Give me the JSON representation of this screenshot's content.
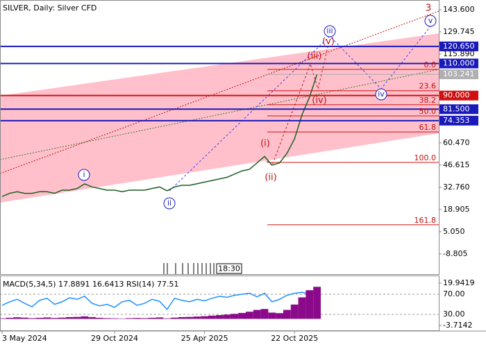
{
  "chart_data": [
    {
      "type": "line",
      "title": "SILVER, Daily:  Silver CFD",
      "categories": [
        "3 May 2024",
        null,
        null,
        null,
        null,
        null,
        null,
        null,
        null,
        null,
        null,
        null,
        null,
        null,
        null,
        "29 Oct 2024",
        null,
        null,
        null,
        null,
        null,
        null,
        null,
        null,
        null,
        null,
        null,
        "25 Apr 2025",
        null,
        null,
        null,
        null,
        null,
        null,
        null,
        null,
        null,
        null,
        null,
        "22 Oct 2025",
        null,
        null,
        null
      ],
      "series": [
        {
          "color": "#1b5e20",
          "values": [
            27,
            29,
            30,
            29,
            29,
            30,
            30,
            29,
            31,
            31,
            32,
            34.9,
            33,
            32,
            31,
            31,
            30,
            31,
            31,
            31,
            32,
            33,
            30.6,
            33,
            34,
            34,
            35,
            36,
            37,
            38,
            39,
            41,
            43,
            44,
            48,
            52,
            46.6,
            48,
            54,
            63,
            78,
            89,
            103.241
          ]
        }
      ],
      "ylim": [
        -21.4,
        148.3
      ],
      "yticks": [
        {
          "value": 143.6,
          "label": "143.600"
        },
        {
          "value": 129.745,
          "label": "129.745"
        },
        {
          "value": 115.89,
          "label": "115.890"
        },
        {
          "value": 60.47,
          "label": "60.470"
        },
        {
          "value": 46.615,
          "label": "46.615"
        },
        {
          "value": 32.76,
          "label": "32.760"
        },
        {
          "value": 18.905,
          "label": "18.905"
        },
        {
          "value": 5.05,
          "label": "5.050"
        },
        {
          "value": -8.805,
          "label": "-8.805"
        }
      ],
      "current_price": {
        "value": 103.241,
        "label": "103.241"
      },
      "levels": [
        {
          "value": 120.65,
          "label": "120.650",
          "color": "#1a1ab8"
        },
        {
          "value": 110,
          "label": "110.000",
          "color": "#1a1ab8"
        },
        {
          "value": 90,
          "label": "90.000",
          "color": "#d01010"
        },
        {
          "value": 81.5,
          "label": "81.500",
          "color": "#1a1ab8"
        },
        {
          "value": 74.353,
          "label": "74.353",
          "color": "#1a1ab8"
        }
      ],
      "fibonacci": {
        "color": "#d01010",
        "levels": [
          {
            "value": 106.3,
            "label": "0.0"
          },
          {
            "value": 93,
            "label": "23.6"
          },
          {
            "value": 84.3,
            "label": "38.2"
          },
          {
            "value": 77.3,
            "label": "50.0"
          },
          {
            "value": 67.3,
            "label": "61.8"
          },
          {
            "value": 48.3,
            "label": "100.0"
          },
          {
            "value": 9.4,
            "label": "161.8"
          }
        ]
      },
      "waves": [
        {
          "label": "i",
          "color": "#1a1ab8",
          "circle": true
        },
        {
          "label": "ii",
          "color": "#1a1ab8",
          "circle": true
        },
        {
          "label": "(i)",
          "color": "#c01010",
          "circle": false
        },
        {
          "label": "(ii)",
          "color": "#c01010",
          "circle": false
        },
        {
          "label": "(iii)",
          "color": "#c01010",
          "circle": false
        },
        {
          "label": "(iv)",
          "color": "#c01010",
          "circle": false
        },
        {
          "label": "(v)",
          "color": "#c01010",
          "circle": false
        },
        {
          "label": "iii",
          "color": "#1a1ab8",
          "circle": true
        },
        {
          "label": "iv",
          "color": "#1a1ab8",
          "circle": true
        },
        {
          "label": "v",
          "color": "#1a1ab8",
          "circle": true
        },
        {
          "label": "3",
          "color": "#c01010",
          "circle": false
        }
      ],
      "session_label": "18:30"
    },
    {
      "type": "line",
      "title": "MACD(5,34,5) 17.8891 16.6413 RSI(14) 77.51",
      "series": [
        {
          "name": "RSI(14)",
          "color": "#1e90ff",
          "axis": "y",
          "values": [
            48,
            55,
            60,
            52,
            45,
            58,
            62,
            50,
            55,
            63,
            60,
            66,
            52,
            47,
            50,
            44,
            55,
            58,
            48,
            52,
            60,
            56,
            40,
            62,
            58,
            55,
            60,
            57,
            62,
            66,
            64,
            68,
            70,
            72,
            65,
            72,
            55,
            60,
            68,
            72,
            74,
            70,
            77.51
          ]
        },
        {
          "name": "MACD(5,34,5)",
          "color": "#8b0a8b",
          "axis": "y2",
          "kind": "bar",
          "values": [
            0.3,
            0.6,
            0.9,
            0.7,
            0.4,
            0.6,
            0.8,
            0.5,
            0.7,
            1,
            1.1,
            1.4,
            1,
            0.6,
            0.4,
            0.3,
            0.2,
            0.4,
            0.5,
            0.4,
            0.6,
            0.8,
            0.3,
            0.7,
            1,
            1.1,
            1.3,
            1.5,
            1.8,
            2.1,
            2.4,
            2.8,
            3.3,
            4,
            5,
            5.5,
            3.5,
            3.2,
            5,
            8,
            12,
            16,
            17.8891
          ]
        }
      ],
      "ylim": [
        -1.7,
        105.9
      ],
      "yticks": [
        {
          "value": 70,
          "label": "70.00"
        },
        {
          "value": 30,
          "label": "30.00"
        }
      ],
      "y2lim": [
        -6.4,
        23.8
      ],
      "y2ticks": [
        {
          "value": 19.9419,
          "label": "19.9419"
        },
        {
          "value": -3.7142,
          "label": "-3.7142"
        }
      ]
    }
  ]
}
